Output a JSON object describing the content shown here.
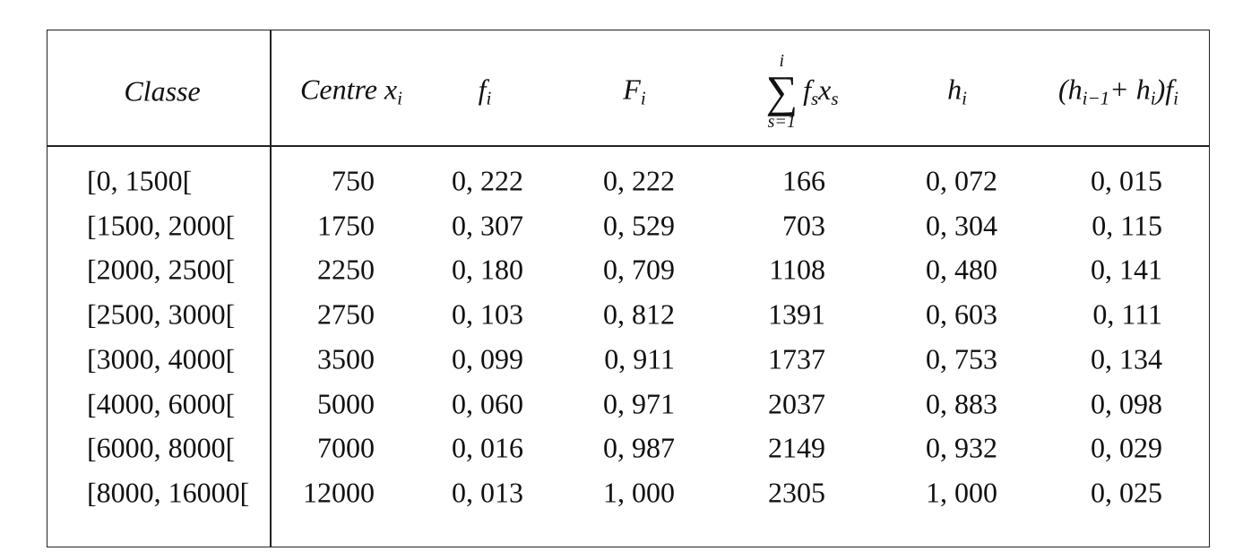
{
  "table": {
    "header": [
      [
        {
          "text": "Classe"
        }
      ],
      [
        {
          "text": "Centre x",
          "sub": "i"
        }
      ],
      [
        {
          "text": "f",
          "sub": "i"
        }
      ],
      [
        {
          "text": "F",
          "sub": "i"
        }
      ],
      [
        {
          "op": "∑",
          "over": "i",
          "under": "s=1"
        },
        {
          "text": "f",
          "sub": "s"
        },
        {
          "text": "x",
          "sub": "s"
        }
      ],
      [
        {
          "text": "h",
          "sub": "i"
        }
      ],
      [
        {
          "text": "(h",
          "sub": "i−1"
        },
        {
          "text": "+ h",
          "sub": "i"
        },
        {
          "text": ")f",
          "sub": "i"
        }
      ]
    ],
    "rows": [
      [
        "[0, 1500[",
        "750",
        "0, 222",
        "0, 222",
        "166",
        "0, 072",
        "0, 015"
      ],
      [
        "[1500, 2000[",
        "1750",
        "0, 307",
        "0, 529",
        "703",
        "0, 304",
        "0, 115"
      ],
      [
        "[2000, 2500[",
        "2250",
        "0, 180",
        "0, 709",
        "1108",
        "0, 480",
        "0, 141"
      ],
      [
        "[2500, 3000[",
        "2750",
        "0, 103",
        "0, 812",
        "1391",
        "0, 603",
        "0, 111"
      ],
      [
        "[3000, 4000[",
        "3500",
        "0, 099",
        "0, 911",
        "1737",
        "0, 753",
        "0, 134"
      ],
      [
        "[4000, 6000[",
        "5000",
        "0, 060",
        "0, 971",
        "2037",
        "0, 883",
        "0, 098"
      ],
      [
        "[6000, 8000[",
        "7000",
        "0, 016",
        "0, 987",
        "2149",
        "0, 932",
        "0, 029"
      ],
      [
        "[8000, 16000[",
        "12000",
        "0, 013",
        "1, 000",
        "2305",
        "1, 000",
        "0, 025"
      ]
    ]
  }
}
